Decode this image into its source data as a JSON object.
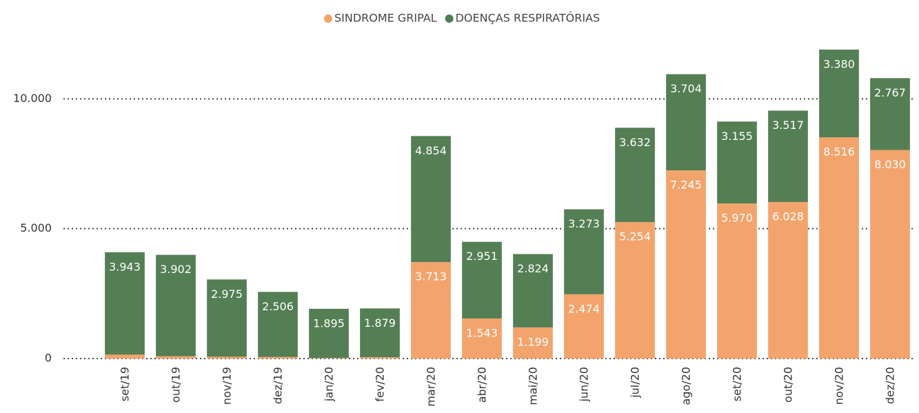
{
  "chart_data": {
    "type": "stacked-bar",
    "categories": [
      "set/19",
      "out/19",
      "nov/19",
      "dez/19",
      "jan/20",
      "fev/20",
      "mar/20",
      "abr/20",
      "mai/20",
      "jun/20",
      "jul/20",
      "ago/20",
      "set/20",
      "out/20",
      "nov/20",
      "dez/20"
    ],
    "series": [
      {
        "name": "SINDROME GRIPAL",
        "color": "#f2a46c",
        "values": [
          150,
          90,
          70,
          60,
          20,
          50,
          3713,
          1543,
          1199,
          2474,
          5254,
          7245,
          5970,
          6028,
          8516,
          8030
        ],
        "value_labels": [
          null,
          null,
          null,
          null,
          null,
          null,
          "3.713",
          "1.543",
          "1.199",
          "2.474",
          "5.254",
          "7.245",
          "5.970",
          "6.028",
          "8.516",
          "8.030"
        ]
      },
      {
        "name": "DOENÇAS RESPIRATÓRIAS",
        "color": "#547e54",
        "values": [
          3943,
          3902,
          2975,
          2506,
          1895,
          1879,
          4854,
          2951,
          2824,
          3273,
          3632,
          3704,
          3155,
          3517,
          3380,
          2767
        ],
        "value_labels": [
          "3.943",
          "3.902",
          "2.975",
          "2.506",
          "1.895",
          "1.879",
          "4.854",
          "2.951",
          "2.824",
          "3.273",
          "3.632",
          "3.704",
          "3.155",
          "3.517",
          "3.380",
          "2.767"
        ]
      }
    ],
    "ylim": [
      0,
      12000
    ],
    "yticks": [
      0,
      {
        "value": 5000,
        "label": "5.000"
      },
      {
        "value": 10000,
        "label": "10.000"
      }
    ],
    "grid": true,
    "legend": "top"
  }
}
